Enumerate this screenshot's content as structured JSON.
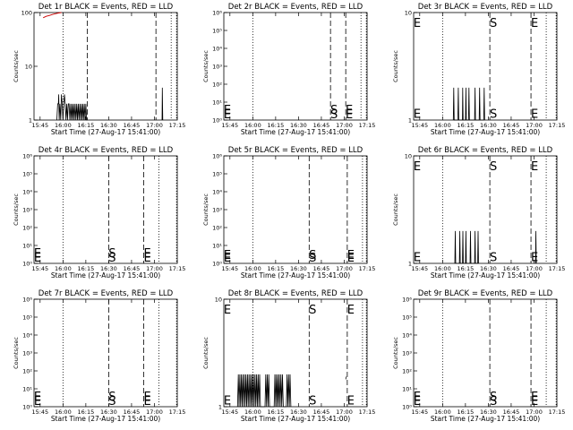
{
  "figure": {
    "title_template": "Det {det} BLACK = Events, RED = LLD",
    "xlabel": "Start Time (27-Aug-17 15:41:00)",
    "ylabel": "Counts/sec",
    "x_ticks": [
      "15:45",
      "16:00",
      "16:15",
      "16:30",
      "16:45",
      "17:00",
      "17:15"
    ],
    "series_colors": {
      "events": "#000000",
      "lld": "#cc0000"
    }
  },
  "chart_data": [
    {
      "type": "line",
      "det": "1r",
      "title": "Det 1r BLACK = Events, RED = LLD",
      "xlim_min": [
        0,
        94
      ],
      "ylim_log10": [
        0,
        2
      ],
      "yticks": [
        {
          "v": 0,
          "label": "1"
        },
        {
          "v": 1,
          "label": "10"
        },
        {
          "v": 2,
          "label": "100"
        }
      ],
      "start_min": 35,
      "end_min": 80,
      "events": [
        [
          15,
          1
        ],
        [
          15.5,
          2
        ],
        [
          16,
          2
        ],
        [
          16.2,
          3
        ],
        [
          16.5,
          1
        ],
        [
          17,
          2
        ],
        [
          17.5,
          1
        ],
        [
          18,
          3
        ],
        [
          18.5,
          2
        ],
        [
          19,
          1
        ],
        [
          19.5,
          2
        ],
        [
          20,
          3
        ],
        [
          20.5,
          2
        ],
        [
          21,
          1
        ],
        [
          21.5,
          2
        ],
        [
          22,
          1
        ],
        [
          22.5,
          2
        ],
        [
          23,
          2
        ],
        [
          23.5,
          1
        ],
        [
          24,
          2
        ],
        [
          24.5,
          1
        ],
        [
          25,
          2
        ],
        [
          25.5,
          1
        ],
        [
          26,
          2
        ],
        [
          26.5,
          1
        ],
        [
          27,
          2
        ],
        [
          27.5,
          1
        ],
        [
          28,
          2
        ],
        [
          28.5,
          1
        ],
        [
          29,
          2
        ],
        [
          29.5,
          1
        ],
        [
          30,
          2
        ],
        [
          30.5,
          1
        ],
        [
          31,
          2
        ],
        [
          31.5,
          1
        ],
        [
          32,
          2
        ],
        [
          32.5,
          1
        ],
        [
          33,
          2
        ],
        [
          33.5,
          1
        ],
        [
          34,
          2
        ],
        [
          34.5,
          1
        ],
        [
          35,
          1
        ]
      ],
      "events_extra": [
        [
          84,
          1
        ],
        [
          84.2,
          4
        ],
        [
          84.5,
          1
        ]
      ],
      "lld": [
        [
          6,
          80
        ],
        [
          8,
          85
        ],
        [
          10,
          88
        ],
        [
          12,
          92
        ],
        [
          14,
          95
        ],
        [
          16,
          98
        ],
        [
          18,
          100
        ]
      ],
      "show_marks": false
    },
    {
      "type": "line",
      "det": "2r",
      "title": "Det 2r BLACK = Events, RED = LLD",
      "xlim_min": [
        0,
        94
      ],
      "ylim_log10": [
        0,
        6
      ],
      "yticks": [
        {
          "v": 0,
          "label": "10⁰"
        },
        {
          "v": 1,
          "label": "10¹"
        },
        {
          "v": 2,
          "label": "10²"
        },
        {
          "v": 3,
          "label": "10³"
        },
        {
          "v": 4,
          "label": "10⁴"
        },
        {
          "v": 5,
          "label": "10⁵"
        },
        {
          "v": 6,
          "label": "10⁶"
        }
      ],
      "start_min": 70,
      "end_min": 80,
      "events": [],
      "events_extra": [],
      "lld": [],
      "show_marks": true,
      "mark_y_log10": 0.6
    },
    {
      "type": "line",
      "det": "3r",
      "title": "Det 3r BLACK = Events, RED = LLD",
      "xlim_min": [
        0,
        94
      ],
      "ylim_log10": [
        0,
        1
      ],
      "yticks": [
        {
          "v": 0,
          "label": "1"
        },
        {
          "v": 1,
          "label": "10"
        }
      ],
      "start_min": 50,
      "end_min": 77,
      "events": [
        [
          26,
          1
        ],
        [
          26.3,
          2
        ],
        [
          26.6,
          1
        ],
        [
          29,
          1
        ],
        [
          29.3,
          2
        ],
        [
          29.6,
          1
        ],
        [
          32,
          1
        ],
        [
          32.2,
          2
        ],
        [
          32.5,
          1
        ],
        [
          34,
          1
        ],
        [
          34.3,
          2
        ],
        [
          34.6,
          1
        ],
        [
          36,
          1
        ],
        [
          36.3,
          2
        ],
        [
          36.6,
          1
        ],
        [
          40,
          1
        ],
        [
          40.3,
          2
        ],
        [
          40.6,
          1
        ],
        [
          43,
          1
        ],
        [
          43.3,
          2
        ],
        [
          43.6,
          1
        ],
        [
          46,
          1
        ],
        [
          46.3,
          2
        ],
        [
          46.6,
          1
        ]
      ],
      "events_extra": [],
      "lld": [],
      "show_marks": true,
      "mark_y_log10": 0.91
    },
    {
      "type": "line",
      "det": "4r",
      "title": "Det 4r BLACK = Events, RED = LLD",
      "xlim_min": [
        0,
        94
      ],
      "ylim_log10": [
        0,
        6
      ],
      "yticks": [
        {
          "v": 0,
          "label": "10⁰"
        },
        {
          "v": 1,
          "label": "10¹"
        },
        {
          "v": 2,
          "label": "10²"
        },
        {
          "v": 3,
          "label": "10³"
        },
        {
          "v": 4,
          "label": "10⁴"
        },
        {
          "v": 5,
          "label": "10⁵"
        },
        {
          "v": 6,
          "label": "10⁶"
        }
      ],
      "start_min": 49,
      "end_min": 72,
      "events": [],
      "events_extra": [],
      "lld": [],
      "show_marks": true,
      "mark_y_log10": 0.6
    },
    {
      "type": "line",
      "det": "5r",
      "title": "Det 5r BLACK = Events, RED = LLD",
      "xlim_min": [
        0,
        94
      ],
      "ylim_log10": [
        0,
        6
      ],
      "yticks": [
        {
          "v": 0,
          "label": "10⁰"
        },
        {
          "v": 1,
          "label": "10¹"
        },
        {
          "v": 2,
          "label": "10²"
        },
        {
          "v": 3,
          "label": "10³"
        },
        {
          "v": 4,
          "label": "10⁴"
        },
        {
          "v": 5,
          "label": "10⁵"
        },
        {
          "v": 6,
          "label": "10⁶"
        }
      ],
      "start_min": 56,
      "end_min": 81,
      "events": [],
      "events_extra": [],
      "lld": [],
      "show_marks": true,
      "mark_y_log10": 0.5
    },
    {
      "type": "line",
      "det": "6r",
      "title": "Det 6r BLACK = Events, RED = LLD",
      "xlim_min": [
        0,
        94
      ],
      "ylim_log10": [
        0,
        1
      ],
      "yticks": [
        {
          "v": 0,
          "label": "1"
        },
        {
          "v": 1,
          "label": "10"
        }
      ],
      "start_min": 50,
      "end_min": 77,
      "events": [
        [
          27,
          1
        ],
        [
          27.3,
          2
        ],
        [
          27.6,
          1
        ],
        [
          30,
          1
        ],
        [
          30.3,
          2
        ],
        [
          30.6,
          1
        ],
        [
          32,
          1
        ],
        [
          32.3,
          2
        ],
        [
          32.6,
          1
        ],
        [
          34,
          1
        ],
        [
          34.3,
          2
        ],
        [
          34.6,
          1
        ],
        [
          37,
          1
        ],
        [
          37.3,
          2
        ],
        [
          37.6,
          1
        ],
        [
          40,
          1
        ],
        [
          40.3,
          2
        ],
        [
          40.6,
          1
        ],
        [
          42,
          1
        ],
        [
          42.3,
          2
        ],
        [
          42.6,
          1
        ]
      ],
      "events_extra": [
        [
          80,
          1
        ],
        [
          80.2,
          2
        ],
        [
          80.5,
          1
        ]
      ],
      "lld": [],
      "show_marks": true,
      "mark_y_log10": 0.91
    },
    {
      "type": "line",
      "det": "7r",
      "title": "Det 7r BLACK = Events, RED = LLD",
      "xlim_min": [
        0,
        94
      ],
      "ylim_log10": [
        0,
        6
      ],
      "yticks": [
        {
          "v": 0,
          "label": "10⁰"
        },
        {
          "v": 1,
          "label": "10¹"
        },
        {
          "v": 2,
          "label": "10²"
        },
        {
          "v": 3,
          "label": "10³"
        },
        {
          "v": 4,
          "label": "10⁴"
        },
        {
          "v": 5,
          "label": "10⁵"
        },
        {
          "v": 6,
          "label": "10⁶"
        }
      ],
      "start_min": 49,
      "end_min": 72,
      "events": [],
      "events_extra": [],
      "lld": [],
      "show_marks": true,
      "mark_y_log10": 0.6
    },
    {
      "type": "line",
      "det": "8r",
      "title": "Det 8r BLACK = Events, RED = LLD",
      "xlim_min": [
        0,
        94
      ],
      "ylim_log10": [
        0,
        1
      ],
      "yticks": [
        {
          "v": 0,
          "label": "1"
        },
        {
          "v": 1,
          "label": "10"
        }
      ],
      "start_min": 56,
      "end_min": 81,
      "events": [
        [
          9,
          1
        ],
        [
          9.5,
          2
        ],
        [
          10,
          1
        ],
        [
          10.5,
          2
        ],
        [
          11,
          1
        ],
        [
          11.5,
          2
        ],
        [
          12,
          1
        ],
        [
          12.5,
          2
        ],
        [
          13,
          1
        ],
        [
          13.5,
          2
        ],
        [
          14,
          1
        ],
        [
          14.5,
          2
        ],
        [
          15,
          1
        ],
        [
          15.5,
          2
        ],
        [
          16,
          1
        ],
        [
          16.5,
          2
        ],
        [
          17,
          1
        ],
        [
          17.5,
          2
        ],
        [
          18,
          1
        ],
        [
          18.5,
          2
        ],
        [
          19,
          1
        ],
        [
          19.5,
          2
        ],
        [
          20,
          1
        ],
        [
          20.5,
          2
        ],
        [
          21,
          1
        ],
        [
          21.5,
          2
        ],
        [
          22,
          1
        ],
        [
          22.5,
          2
        ],
        [
          23,
          1
        ],
        [
          23.5,
          2
        ],
        [
          24,
          1
        ],
        [
          27,
          1
        ],
        [
          27.5,
          2
        ],
        [
          28,
          1
        ],
        [
          28.5,
          2
        ],
        [
          29,
          1
        ],
        [
          29.5,
          2
        ],
        [
          30,
          1
        ],
        [
          33,
          1
        ],
        [
          33.5,
          2
        ],
        [
          34,
          1
        ],
        [
          34.5,
          2
        ],
        [
          35,
          1
        ],
        [
          35.5,
          2
        ],
        [
          36,
          1
        ],
        [
          36.5,
          2
        ],
        [
          37,
          1
        ],
        [
          37.5,
          2
        ],
        [
          38,
          1
        ],
        [
          38.5,
          2
        ],
        [
          39,
          1
        ],
        [
          41,
          1
        ],
        [
          41.5,
          2
        ],
        [
          42,
          1
        ],
        [
          42.5,
          2
        ],
        [
          43,
          1
        ],
        [
          43.5,
          2
        ],
        [
          44,
          1
        ]
      ],
      "events_extra": [
        [
          80,
          1.8
        ],
        [
          80.2,
          1.9
        ]
      ],
      "lld": [],
      "show_marks": true,
      "mark_y_log10": 0.91
    },
    {
      "type": "line",
      "det": "9r",
      "title": "Det 9r BLACK = Events, RED = LLD",
      "xlim_min": [
        0,
        94
      ],
      "ylim_log10": [
        0,
        6
      ],
      "yticks": [
        {
          "v": 0,
          "label": "10⁰"
        },
        {
          "v": 1,
          "label": "10¹"
        },
        {
          "v": 2,
          "label": "10²"
        },
        {
          "v": 3,
          "label": "10³"
        },
        {
          "v": 4,
          "label": "10⁴"
        },
        {
          "v": 5,
          "label": "10⁵"
        },
        {
          "v": 6,
          "label": "10⁶"
        }
      ],
      "start_min": 50,
      "end_min": 77,
      "events": [],
      "events_extra": [],
      "lld": [],
      "show_marks": true,
      "mark_y_log10": 0.6
    }
  ],
  "marks": {
    "start": "S",
    "end": "E"
  }
}
